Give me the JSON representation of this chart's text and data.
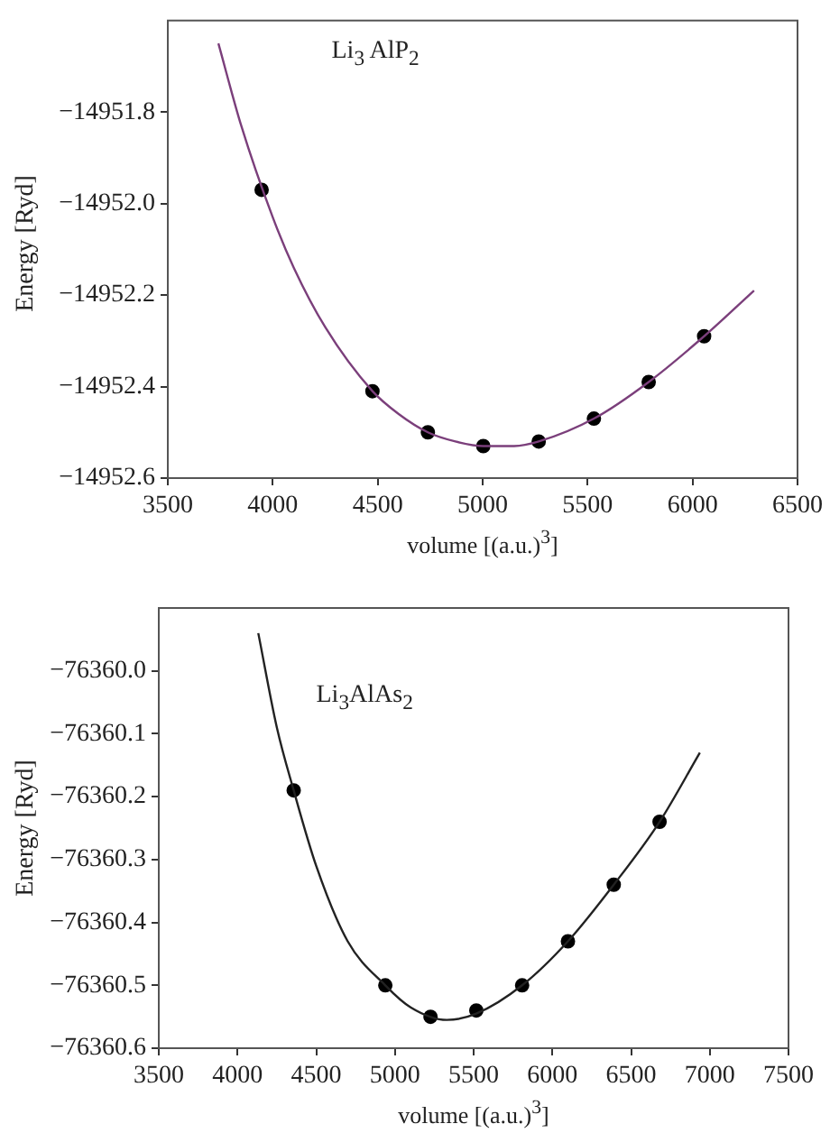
{
  "chart_data": [
    {
      "type": "scatter",
      "xlabel": "volume [(a.u.)$^{3}$]",
      "ylabel": "Energy [Ryd]",
      "annotations": [
        "Li$_{3}$ AlP$_{2}$"
      ],
      "xlim": [
        3500,
        6500
      ],
      "xticks": [
        3500,
        4000,
        4500,
        5000,
        5500,
        6000,
        6500
      ],
      "ylim": [
        -14952.6,
        -14951.6
      ],
      "yticks": [
        {
          "value": -14952.6,
          "label": "−14952.6"
        },
        {
          "value": -14952.4,
          "label": "−14952.4"
        },
        {
          "value": -14952.2,
          "label": "−14952.2"
        },
        {
          "value": -14952,
          "label": "−14952.0"
        },
        {
          "value": -14951.8,
          "label": "−14951.8"
        }
      ],
      "grid": false,
      "legend": false,
      "series": [
        {
          "type": "line",
          "color": "#7b3f7b",
          "marker": "none",
          "x": [
            3741,
            3850,
            4000,
            4100,
            4250,
            4475,
            4600,
            4739,
            4870,
            5003,
            5150,
            5267,
            5530,
            5791,
            6055,
            6293
          ],
          "values": [
            -14951.65,
            -14951.83,
            -14952.03,
            -14952.14,
            -14952.27,
            -14952.41,
            -14952.46,
            -14952.5,
            -14952.52,
            -14952.53,
            -14952.53,
            -14952.52,
            -14952.47,
            -14952.39,
            -14952.29,
            -14952.19
          ]
        },
        {
          "type": "scatter",
          "color": "#000000",
          "marker": "circle",
          "x": [
            3947,
            4475,
            4739,
            5003,
            5267,
            5530,
            5791,
            6055
          ],
          "values": [
            -14951.97,
            -14952.41,
            -14952.5,
            -14952.53,
            -14952.52,
            -14952.47,
            -14952.39,
            -14952.29
          ]
        }
      ]
    },
    {
      "type": "scatter",
      "xlabel": "volume [(a.u.)$^{3}$]",
      "ylabel": "Energy [Ryd]",
      "annotations": [
        "Li$_{3}$AlAs$_{2}$"
      ],
      "xlim": [
        3500,
        7500
      ],
      "xticks": [
        3500,
        4000,
        4500,
        5000,
        5500,
        6000,
        6500,
        7000,
        7500
      ],
      "ylim": [
        -76360.6,
        -76359.9
      ],
      "yticks": [
        {
          "value": -76360.6,
          "label": "−76360.6"
        },
        {
          "value": -76360.5,
          "label": "−76360.5"
        },
        {
          "value": -76360.4,
          "label": "−76360.4"
        },
        {
          "value": -76360.3,
          "label": "−76360.3"
        },
        {
          "value": -76360.2,
          "label": "−76360.2"
        },
        {
          "value": -76360.1,
          "label": "−76360.1"
        },
        {
          "value": -76360,
          "label": "−76360.0"
        }
      ],
      "grid": false,
      "legend": false,
      "series": [
        {
          "type": "line",
          "color": "#222222",
          "marker": "none",
          "x": [
            4132,
            4250,
            4357,
            4500,
            4700,
            4939,
            5100,
            5330,
            5517,
            5808,
            6099,
            6390,
            6681,
            6937
          ],
          "values": [
            -76359.94,
            -76360.09,
            -76360.19,
            -76360.31,
            -76360.43,
            -76360.5,
            -76360.535,
            -76360.555,
            -76360.545,
            -76360.5,
            -76360.43,
            -76360.34,
            -76360.24,
            -76360.13
          ]
        },
        {
          "type": "scatter",
          "color": "#000000",
          "marker": "circle",
          "x": [
            4357,
            4939,
            5226,
            5517,
            5808,
            6099,
            6390,
            6681
          ],
          "values": [
            -76360.19,
            -76360.5,
            -76360.55,
            -76360.54,
            -76360.5,
            -76360.43,
            -76360.34,
            -76360.24
          ]
        }
      ]
    }
  ]
}
